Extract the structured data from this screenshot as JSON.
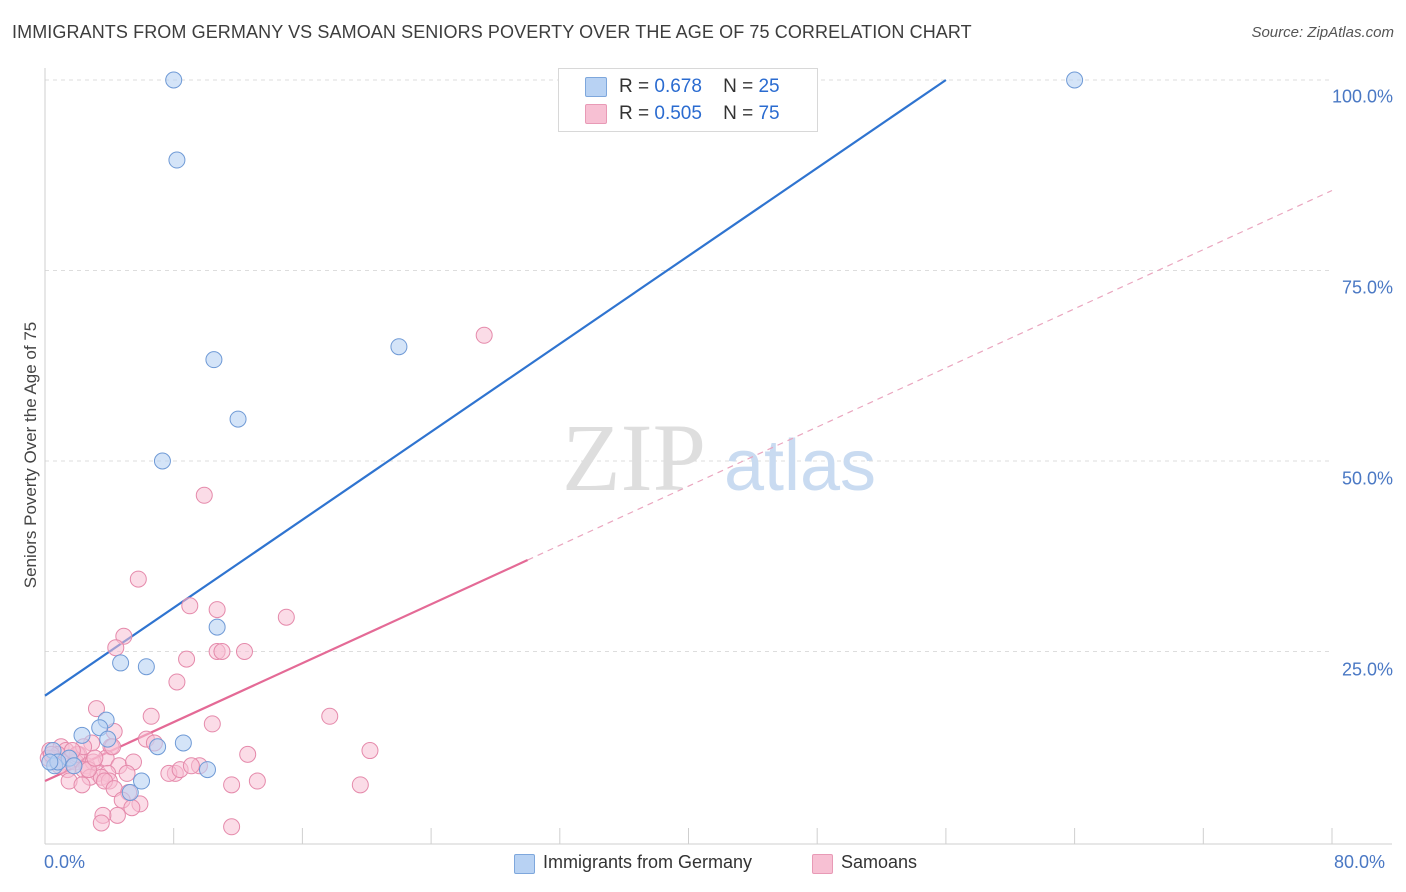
{
  "title": "IMMIGRANTS FROM GERMANY VS SAMOAN SENIORS POVERTY OVER THE AGE OF 75 CORRELATION CHART",
  "source": "Source: ZipAtlas.com",
  "watermark": {
    "zip": "ZIP",
    "atlas": "atlas"
  },
  "legend_top": [
    {
      "r_label": "R =",
      "r_value": "0.678",
      "n_label": "N =",
      "n_value": "25"
    },
    {
      "r_label": "R =",
      "r_value": "0.505",
      "n_label": "N =",
      "n_value": "75"
    }
  ],
  "legend_bottom": [
    "Immigrants from Germany",
    "Samoans"
  ],
  "colors": {
    "blue": "#2f74d0",
    "blue_fill": "#b8d2f3",
    "pink": "#e46a96",
    "pink_fill": "#f7c0d3",
    "grid": "#dddddd",
    "tick_text": "#4a78c4"
  },
  "chart_data": {
    "type": "scatter",
    "title": "IMMIGRANTS FROM GERMANY VS SAMOAN SENIORS POVERTY OVER THE AGE OF 75 CORRELATION CHART",
    "xlabel": "",
    "ylabel": "Seniors Poverty Over the Age of 75",
    "xlim": [
      0,
      80
    ],
    "ylim": [
      0,
      100
    ],
    "x_tick_labels": [
      "0.0%",
      "80.0%"
    ],
    "y_ticks": [
      25,
      50,
      75,
      100
    ],
    "y_tick_labels": [
      "25.0%",
      "50.0%",
      "75.0%",
      "100.0%"
    ],
    "grid": true,
    "series": [
      {
        "name": "Immigrants from Germany",
        "color": "#2f74d0",
        "R": 0.678,
        "N": 25,
        "trend": {
          "x0": 0,
          "y0": 19.2,
          "x1": 56,
          "y1": 100,
          "style": "solid"
        },
        "points": [
          [
            8.0,
            100.0
          ],
          [
            8.2,
            89.5
          ],
          [
            64.0,
            100.0
          ],
          [
            10.5,
            63.3
          ],
          [
            22.0,
            65.0
          ],
          [
            12.0,
            55.5
          ],
          [
            7.3,
            50.0
          ],
          [
            10.7,
            28.2
          ],
          [
            4.7,
            23.5
          ],
          [
            6.3,
            23.0
          ],
          [
            3.8,
            16.0
          ],
          [
            3.4,
            15.0
          ],
          [
            3.9,
            13.5
          ],
          [
            2.3,
            14.0
          ],
          [
            0.5,
            12.0
          ],
          [
            1.5,
            11.0
          ],
          [
            0.6,
            10.0
          ],
          [
            7.0,
            12.5
          ],
          [
            8.6,
            13.0
          ],
          [
            10.1,
            9.5
          ],
          [
            6.0,
            8.0
          ],
          [
            5.3,
            6.5
          ],
          [
            0.8,
            10.5
          ],
          [
            1.8,
            10.0
          ],
          [
            0.3,
            10.5
          ]
        ]
      },
      {
        "name": "Samoans",
        "color": "#e46a96",
        "R": 0.505,
        "N": 75,
        "trend": {
          "x0": 0,
          "y0": 8.0,
          "x1": 30,
          "y1": 37.0,
          "style": "solid",
          "extension": {
            "x1": 80,
            "y1": 85.5,
            "style": "dashed"
          }
        },
        "points": [
          [
            27.3,
            66.5
          ],
          [
            9.9,
            45.5
          ],
          [
            5.8,
            34.5
          ],
          [
            9.0,
            31.0
          ],
          [
            10.7,
            30.5
          ],
          [
            15.0,
            29.5
          ],
          [
            4.9,
            27.0
          ],
          [
            4.4,
            25.5
          ],
          [
            10.7,
            25.0
          ],
          [
            11.0,
            25.0
          ],
          [
            12.4,
            25.0
          ],
          [
            8.8,
            24.0
          ],
          [
            8.2,
            21.0
          ],
          [
            3.2,
            17.5
          ],
          [
            6.6,
            16.5
          ],
          [
            17.7,
            16.5
          ],
          [
            10.4,
            15.5
          ],
          [
            4.3,
            14.5
          ],
          [
            6.3,
            13.5
          ],
          [
            2.9,
            13.0
          ],
          [
            4.1,
            12.5
          ],
          [
            0.3,
            12.0
          ],
          [
            1.0,
            12.5
          ],
          [
            1.3,
            12.0
          ],
          [
            0.8,
            11.5
          ],
          [
            2.1,
            11.5
          ],
          [
            3.8,
            11.0
          ],
          [
            12.6,
            11.5
          ],
          [
            20.2,
            12.0
          ],
          [
            0.5,
            11.0
          ],
          [
            1.6,
            11.0
          ],
          [
            0.2,
            11.0
          ],
          [
            1.1,
            10.5
          ],
          [
            1.9,
            10.5
          ],
          [
            2.6,
            10.0
          ],
          [
            3.0,
            10.5
          ],
          [
            4.6,
            10.0
          ],
          [
            5.5,
            10.5
          ],
          [
            1.4,
            9.5
          ],
          [
            2.4,
            9.5
          ],
          [
            3.3,
            9.0
          ],
          [
            3.9,
            9.0
          ],
          [
            5.1,
            9.0
          ],
          [
            8.1,
            9.0
          ],
          [
            7.7,
            9.0
          ],
          [
            8.4,
            9.5
          ],
          [
            9.6,
            10.0
          ],
          [
            2.8,
            8.5
          ],
          [
            3.5,
            8.5
          ],
          [
            4.0,
            8.0
          ],
          [
            1.5,
            8.0
          ],
          [
            2.3,
            7.5
          ],
          [
            3.7,
            8.0
          ],
          [
            11.6,
            7.5
          ],
          [
            13.2,
            8.0
          ],
          [
            19.6,
            7.5
          ],
          [
            4.3,
            7.0
          ],
          [
            5.2,
            6.5
          ],
          [
            4.8,
            5.5
          ],
          [
            5.9,
            5.0
          ],
          [
            5.4,
            4.5
          ],
          [
            4.5,
            3.5
          ],
          [
            3.6,
            3.5
          ],
          [
            3.5,
            2.5
          ],
          [
            11.6,
            2.0
          ],
          [
            0.4,
            11.5
          ],
          [
            0.9,
            10.0
          ],
          [
            2.0,
            11.5
          ],
          [
            2.7,
            9.5
          ],
          [
            3.1,
            11.0
          ],
          [
            4.2,
            12.5
          ],
          [
            6.8,
            13.0
          ],
          [
            9.1,
            10.0
          ],
          [
            2.4,
            12.5
          ],
          [
            1.7,
            12.0
          ]
        ]
      }
    ]
  }
}
